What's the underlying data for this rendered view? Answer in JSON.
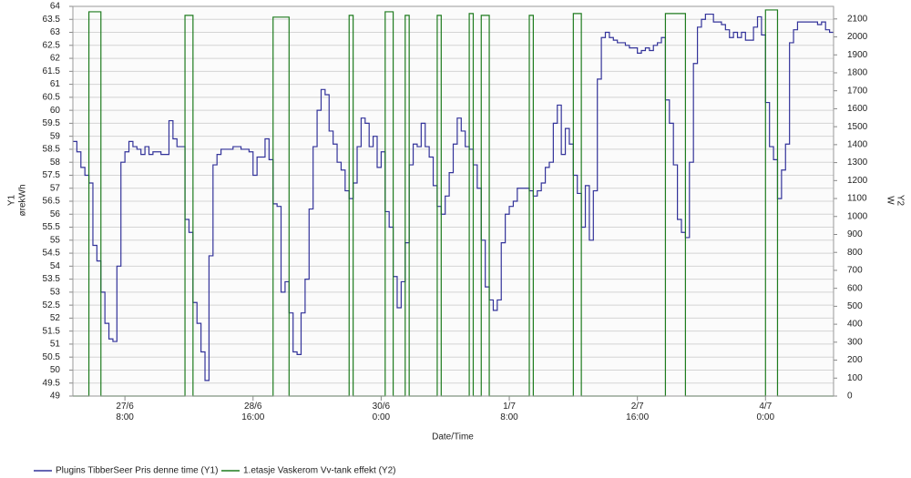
{
  "chart_data": {
    "type": "line",
    "xlabel": "Date/Time",
    "ylabel": [
      "Y1",
      "ørekWh"
    ],
    "y2label": [
      "Y2",
      "W"
    ],
    "step": true,
    "grid": true,
    "legend": "bottom-left",
    "xlim": [
      "26/6 19:00",
      "4/7 17:00"
    ],
    "xticks": [
      {
        "value": "27/6 8:00",
        "label": "27/6\n8:00"
      },
      {
        "value": "28/6 16:00",
        "label": "28/6\n16:00"
      },
      {
        "value": "30/6 0:00",
        "label": "30/6\n0:00"
      },
      {
        "value": "1/7 8:00",
        "label": "1/7\n8:00"
      },
      {
        "value": "2/7 16:00",
        "label": "2/7\n16:00"
      },
      {
        "value": "4/7 0:00",
        "label": "4/7\n0:00"
      }
    ],
    "ylim": [
      49,
      64
    ],
    "yticks": [
      49,
      49.5,
      50,
      50.5,
      51,
      51.5,
      52,
      52.5,
      53,
      53.5,
      54,
      54.5,
      55,
      55.5,
      56,
      56.5,
      57,
      57.5,
      58,
      58.5,
      59,
      59.5,
      60,
      60.5,
      61,
      61.5,
      62,
      62.5,
      63,
      63.5,
      64
    ],
    "y2lim": [
      0,
      2170
    ],
    "y2ticks": [
      0,
      100,
      200,
      300,
      400,
      500,
      600,
      700,
      800,
      900,
      1000,
      1100,
      1200,
      1300,
      1400,
      1500,
      1600,
      1700,
      1800,
      1900,
      2000,
      2100
    ],
    "series": [
      {
        "name": "Plugins TibberSeer Pris denne time (Y1)",
        "color": "#33339a",
        "axis": "y",
        "x": [
          "26/6 19:00",
          "26/6 20:00",
          "26/6 21:00",
          "26/6 22:00",
          "26/6 23:00",
          "27/6 0:00",
          "27/6 1:00",
          "27/6 2:00",
          "27/6 3:00",
          "27/6 4:00",
          "27/6 5:00",
          "27/6 6:00",
          "27/6 7:00",
          "27/6 8:00",
          "27/6 9:00",
          "27/6 10:00",
          "27/6 11:00",
          "27/6 12:00",
          "27/6 13:00",
          "27/6 14:00",
          "27/6 15:00",
          "27/6 17:00",
          "27/6 19:00",
          "27/6 20:00",
          "27/6 21:00",
          "27/6 23:00",
          "28/6 0:00",
          "28/6 1:00",
          "28/6 2:00",
          "28/6 3:00",
          "28/6 4:00",
          "28/6 5:00",
          "28/6 6:00",
          "28/6 7:00",
          "28/6 8:00",
          "28/6 11:00",
          "28/6 13:00",
          "28/6 15:00",
          "28/6 16:00",
          "28/6 17:00",
          "28/6 19:00",
          "28/6 20:00",
          "28/6 21:00",
          "28/6 22:00",
          "28/6 23:00",
          "29/6 0:00",
          "29/6 1:00",
          "29/6 2:00",
          "29/6 3:00",
          "29/6 4:00",
          "29/6 5:00",
          "29/6 6:00",
          "29/6 7:00",
          "29/6 8:00",
          "29/6 9:00",
          "29/6 10:00",
          "29/6 11:00",
          "29/6 12:00",
          "29/6 13:00",
          "29/6 14:00",
          "29/6 15:00",
          "29/6 16:00",
          "29/6 17:00",
          "29/6 18:00",
          "29/6 19:00",
          "29/6 20:00",
          "29/6 21:00",
          "29/6 22:00",
          "29/6 23:00",
          "30/6 0:00",
          "30/6 1:00",
          "30/6 2:00",
          "30/6 3:00",
          "30/6 4:00",
          "30/6 5:00",
          "30/6 6:00",
          "30/6 7:00",
          "30/6 8:00",
          "30/6 9:00",
          "30/6 10:00",
          "30/6 11:00",
          "30/6 12:00",
          "30/6 13:00",
          "30/6 14:00",
          "30/6 15:00",
          "30/6 16:00",
          "30/6 17:00",
          "30/6 18:00",
          "30/6 19:00",
          "30/6 20:00",
          "30/6 21:00",
          "30/6 22:00",
          "30/6 23:00",
          "1/7 0:00",
          "1/7 1:00",
          "1/7 2:00",
          "1/7 3:00",
          "1/7 4:00",
          "1/7 5:00",
          "1/7 6:00",
          "1/7 7:00",
          "1/7 8:00",
          "1/7 9:00",
          "1/7 10:00",
          "1/7 13:00",
          "1/7 14:00",
          "1/7 15:00",
          "1/7 16:00",
          "1/7 17:00",
          "1/7 18:00",
          "1/7 19:00",
          "1/7 20:00",
          "1/7 21:00",
          "1/7 22:00",
          "1/7 23:00",
          "2/7 0:00",
          "2/7 1:00",
          "2/7 2:00",
          "2/7 3:00",
          "2/7 4:00",
          "2/7 5:00",
          "2/7 6:00",
          "2/7 7:00",
          "2/7 8:00",
          "2/7 9:00",
          "2/7 10:00",
          "2/7 11:00",
          "2/7 13:00",
          "2/7 14:00",
          "2/7 16:00",
          "2/7 17:00",
          "2/7 18:00",
          "2/7 19:00",
          "2/7 20:00",
          "2/7 21:00",
          "2/7 22:00",
          "2/7 23:00",
          "3/7 0:00",
          "3/7 1:00",
          "3/7 2:00",
          "3/7 3:00",
          "3/7 4:00",
          "3/7 5:00",
          "3/7 6:00",
          "3/7 7:00",
          "3/7 8:00",
          "3/7 9:00",
          "3/7 11:00",
          "3/7 13:00",
          "3/7 14:00",
          "3/7 15:00",
          "3/7 16:00",
          "3/7 17:00",
          "3/7 18:00",
          "3/7 19:00",
          "3/7 21:00",
          "3/7 22:00",
          "3/7 23:00",
          "4/7 0:00",
          "4/7 1:00",
          "4/7 2:00",
          "4/7 3:00",
          "4/7 4:00",
          "4/7 5:00",
          "4/7 6:00",
          "4/7 7:00",
          "4/7 8:00",
          "4/7 13:00",
          "4/7 14:00",
          "4/7 15:00",
          "4/7 16:00"
        ],
        "values": [
          58.8,
          58.4,
          57.8,
          57.5,
          57.2,
          54.8,
          54.2,
          53.0,
          51.8,
          51.2,
          51.1,
          54.0,
          58.0,
          58.4,
          58.8,
          58.6,
          58.5,
          58.3,
          58.6,
          58.3,
          58.4,
          58.3,
          59.6,
          58.9,
          58.6,
          55.8,
          55.3,
          52.6,
          51.8,
          50.7,
          49.6,
          54.4,
          57.9,
          58.3,
          58.5,
          58.6,
          58.5,
          58.4,
          57.5,
          58.2,
          58.9,
          58.1,
          56.4,
          56.3,
          53.0,
          53.4,
          52.2,
          50.7,
          50.6,
          52.2,
          53.5,
          56.2,
          58.6,
          60.0,
          60.8,
          60.6,
          59.2,
          58.7,
          58.0,
          57.7,
          56.9,
          56.6,
          57.2,
          58.6,
          59.7,
          59.5,
          58.6,
          59.0,
          57.8,
          58.4,
          56.1,
          55.5,
          53.6,
          52.4,
          53.4,
          54.9,
          57.9,
          58.7,
          58.6,
          59.5,
          58.6,
          58.2,
          57.1,
          56.3,
          56.0,
          56.7,
          57.6,
          58.7,
          59.7,
          59.2,
          58.6,
          58.5,
          57.9,
          57.0,
          55.0,
          53.2,
          52.7,
          52.3,
          52.7,
          54.9,
          56.0,
          56.3,
          56.5,
          57.0,
          56.9,
          56.7,
          56.9,
          57.2,
          57.8,
          58.0,
          59.5,
          60.2,
          58.3,
          59.3,
          58.7,
          57.5,
          56.8,
          55.5,
          57.1,
          55.0,
          56.9,
          61.2,
          62.8,
          63.0,
          62.8,
          62.7,
          62.6,
          62.5,
          62.4,
          62.2,
          62.3,
          62.4,
          62.3,
          62.5,
          62.6,
          62.8,
          60.4,
          59.5,
          57.9,
          55.8,
          55.3,
          55.1,
          58.0,
          61.8,
          63.2,
          63.5,
          63.7,
          63.4,
          63.3,
          63.1,
          62.8,
          63.0,
          62.8,
          63.0,
          62.7,
          63.2,
          63.6,
          62.9,
          60.3,
          58.6,
          58.1,
          56.6,
          57.7,
          58.7,
          62.6,
          63.1,
          63.4,
          63.3,
          63.4,
          63.1,
          63.0
        ]
      },
      {
        "name": "1.etasje Vaskerom Vv-tank effekt (Y2)",
        "color": "#1e7b1e",
        "axis": "y2",
        "x": [
          "26/6 19:00",
          "26/6 23:00",
          "27/6 2:00",
          "27/6 23:00",
          "28/6 1:00",
          "28/6 21:00",
          "29/6 1:00",
          "29/6 16:00",
          "29/6 17:00",
          "30/6 1:00",
          "30/6 3:00",
          "30/6 6:00",
          "30/6 7:00",
          "30/6 14:00",
          "30/6 15:00",
          "30/6 22:00",
          "30/6 23:00",
          "1/7 1:00",
          "1/7 3:00",
          "1/7 13:00",
          "1/7 14:00",
          "2/7 0:00",
          "2/7 2:00",
          "2/7 23:00",
          "3/7 4:00",
          "4/7 0:00",
          "4/7 3:00"
        ],
        "values": [
          0,
          2140,
          0,
          2120,
          0,
          2110,
          0,
          2120,
          0,
          2140,
          0,
          2120,
          0,
          2120,
          0,
          2130,
          0,
          2120,
          0,
          2120,
          0,
          2130,
          0,
          2130,
          0,
          2150,
          0
        ]
      }
    ]
  }
}
